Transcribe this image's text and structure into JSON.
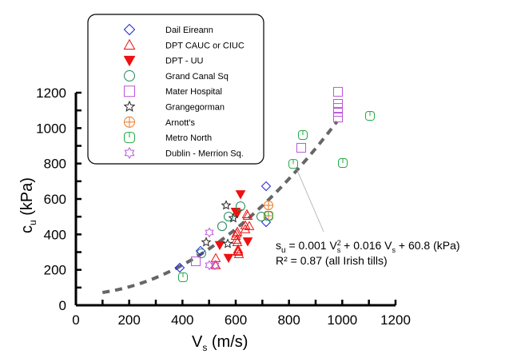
{
  "chart_data": {
    "type": "scatter",
    "title": "",
    "xlabel": "V",
    "xlabel_sub": "s",
    "xlabel_unit": " (m/s)",
    "ylabel": "c",
    "ylabel_sub": "u",
    "ylabel_unit": " (kPa)",
    "xlim": [
      0,
      1200
    ],
    "ylim": [
      0,
      1200
    ],
    "xticks": [
      0,
      200,
      400,
      600,
      800,
      1000,
      1200
    ],
    "yticks": [
      0,
      200,
      400,
      600,
      800,
      1000,
      1200
    ],
    "xminor_step": 100,
    "yminor_step": 100,
    "grid": false,
    "legend_position": "top-left",
    "series": [
      {
        "name": "Dail Eireann",
        "marker": "diamond",
        "color": "#2222dd",
        "filled": false,
        "points": [
          [
            390,
            212
          ],
          [
            468,
            307
          ],
          [
            714,
            672
          ],
          [
            714,
            469
          ]
        ]
      },
      {
        "name": "DPT CAUC or CIUC",
        "marker": "triangle-up",
        "color": "#ee1111",
        "filled": false,
        "points": [
          [
            525,
            266
          ],
          [
            525,
            226
          ],
          [
            603,
            406
          ],
          [
            603,
            370
          ],
          [
            609,
            307
          ],
          [
            612,
            289
          ],
          [
            636,
            451
          ],
          [
            636,
            429
          ],
          [
            642,
            514
          ],
          [
            606,
            415
          ],
          [
            606,
            356
          ],
          [
            609,
            302
          ],
          [
            645,
            505
          ],
          [
            651,
            447
          ],
          [
            600,
            392
          ],
          [
            609,
            316
          ]
        ]
      },
      {
        "name": "DPT - UU",
        "marker": "triangle-down",
        "color": "#ee1111",
        "filled": true,
        "points": [
          [
            618,
            627
          ],
          [
            606,
            519
          ],
          [
            540,
            340
          ],
          [
            573,
            268
          ],
          [
            645,
            361
          ],
          [
            600,
            528
          ]
        ]
      },
      {
        "name": "Grand Canal Sq",
        "marker": "circle",
        "color": "#22885a",
        "filled": false,
        "points": [
          [
            618,
            559
          ],
          [
            573,
            501
          ],
          [
            549,
            446
          ],
          [
            471,
            293
          ],
          [
            696,
            501
          ]
        ]
      },
      {
        "name": "Mater Hospital",
        "marker": "square",
        "color": "#bb55dd",
        "filled": false,
        "points": [
          [
            984,
            1205
          ],
          [
            984,
            1137
          ],
          [
            984,
            1114
          ],
          [
            984,
            1092
          ],
          [
            984,
            1060
          ],
          [
            846,
            889
          ],
          [
            450,
            248
          ]
        ]
      },
      {
        "name": "Grangegorman",
        "marker": "star5",
        "color": "#222222",
        "filled": false,
        "points": [
          [
            564,
            564
          ],
          [
            591,
            492
          ],
          [
            489,
            356
          ],
          [
            570,
            347
          ]
        ]
      },
      {
        "name": "Arnott's",
        "marker": "circle-plus",
        "color": "#ee7722",
        "filled": false,
        "points": [
          [
            723,
            564
          ],
          [
            723,
            505
          ]
        ]
      },
      {
        "name": "Metro North",
        "marker": "metro",
        "color": "#22aa44",
        "filled": false,
        "points": [
          [
            402,
            158
          ],
          [
            1104,
            1069
          ],
          [
            1002,
            803
          ],
          [
            816,
            798
          ],
          [
            852,
            961
          ],
          [
            723,
            505
          ]
        ]
      },
      {
        "name": "Dublin - Merrion Sq.",
        "marker": "star6",
        "color": "#bb55dd",
        "filled": false,
        "points": [
          [
            501,
            411
          ],
          [
            501,
            226
          ],
          [
            522,
            226
          ]
        ]
      }
    ],
    "fit": {
      "label": "all Irish tills",
      "coefficients": {
        "a": 0.001,
        "b": 0.016,
        "c": 60.8
      },
      "x_range": [
        100,
        980
      ],
      "color": "#666666",
      "style": "dashed"
    },
    "annotation": {
      "line1_a": "s",
      "line1_a_sub": "u",
      "line1_b": " = 0.001 V",
      "line1_b_sup": "2",
      "line1_b_sub": "s",
      "line1_c": " + 0.016 V",
      "line1_c_sub": "s",
      "line1_d": " + 60.8 (kPa)",
      "line2": "R² = 0.87 (all Irish tills)",
      "leader_from": [
        830,
        765
      ],
      "leader_to": [
        930,
        415
      ]
    }
  }
}
